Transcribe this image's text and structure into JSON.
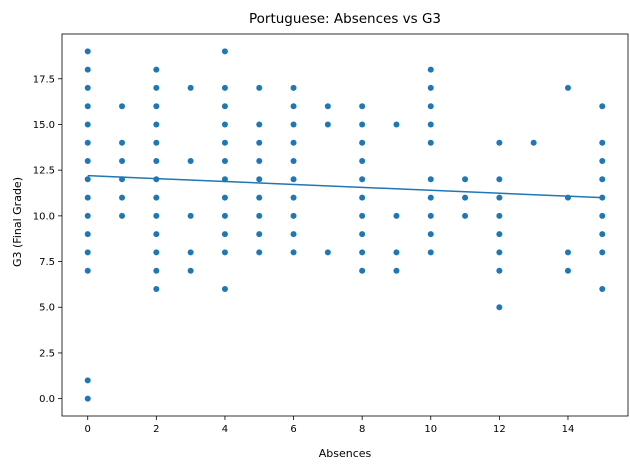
{
  "chart_data": {
    "type": "scatter",
    "title": "Portuguese: Absences vs G3",
    "xlabel": "Absences",
    "ylabel": "G3 (Final Grade)",
    "xlim": [
      -0.75,
      15.75
    ],
    "ylim": [
      -0.95,
      19.95
    ],
    "xticks": [
      0,
      2,
      4,
      6,
      8,
      10,
      12,
      14
    ],
    "xtick_labels": [
      "0",
      "2",
      "4",
      "6",
      "8",
      "10",
      "12",
      "14"
    ],
    "yticks": [
      0.0,
      2.5,
      5.0,
      7.5,
      10.0,
      12.5,
      15.0,
      17.5
    ],
    "ytick_labels": [
      "0.0",
      "2.5",
      "5.0",
      "7.5",
      "10.0",
      "12.5",
      "15.0",
      "17.5"
    ],
    "grid": false,
    "marker_color": "#1f77b4",
    "line_color": "#1f77b4",
    "points": [
      [
        0,
        19
      ],
      [
        0,
        18
      ],
      [
        0,
        17
      ],
      [
        0,
        16
      ],
      [
        0,
        15
      ],
      [
        0,
        14
      ],
      [
        0,
        13
      ],
      [
        0,
        12
      ],
      [
        0,
        11
      ],
      [
        0,
        10
      ],
      [
        0,
        9
      ],
      [
        0,
        8
      ],
      [
        0,
        7
      ],
      [
        0,
        1
      ],
      [
        0,
        0
      ],
      [
        1,
        16
      ],
      [
        1,
        14
      ],
      [
        1,
        13
      ],
      [
        1,
        12
      ],
      [
        1,
        11
      ],
      [
        1,
        10
      ],
      [
        2,
        18
      ],
      [
        2,
        17
      ],
      [
        2,
        16
      ],
      [
        2,
        15
      ],
      [
        2,
        14
      ],
      [
        2,
        13
      ],
      [
        2,
        12
      ],
      [
        2,
        11
      ],
      [
        2,
        10
      ],
      [
        2,
        9
      ],
      [
        2,
        8
      ],
      [
        2,
        7
      ],
      [
        2,
        6
      ],
      [
        3,
        17
      ],
      [
        3,
        13
      ],
      [
        3,
        10
      ],
      [
        3,
        8
      ],
      [
        3,
        7
      ],
      [
        4,
        19
      ],
      [
        4,
        17
      ],
      [
        4,
        16
      ],
      [
        4,
        15
      ],
      [
        4,
        14
      ],
      [
        4,
        13
      ],
      [
        4,
        12
      ],
      [
        4,
        11
      ],
      [
        4,
        10
      ],
      [
        4,
        9
      ],
      [
        4,
        8
      ],
      [
        4,
        6
      ],
      [
        5,
        17
      ],
      [
        5,
        15
      ],
      [
        5,
        14
      ],
      [
        5,
        13
      ],
      [
        5,
        12
      ],
      [
        5,
        11
      ],
      [
        5,
        10
      ],
      [
        5,
        9
      ],
      [
        5,
        8
      ],
      [
        6,
        17
      ],
      [
        6,
        16
      ],
      [
        6,
        15
      ],
      [
        6,
        14
      ],
      [
        6,
        13
      ],
      [
        6,
        12
      ],
      [
        6,
        11
      ],
      [
        6,
        10
      ],
      [
        6,
        9
      ],
      [
        6,
        8
      ],
      [
        7,
        16
      ],
      [
        7,
        15
      ],
      [
        7,
        8
      ],
      [
        8,
        16
      ],
      [
        8,
        15
      ],
      [
        8,
        14
      ],
      [
        8,
        13
      ],
      [
        8,
        12
      ],
      [
        8,
        11
      ],
      [
        8,
        10
      ],
      [
        8,
        9
      ],
      [
        8,
        8
      ],
      [
        8,
        7
      ],
      [
        9,
        15
      ],
      [
        9,
        10
      ],
      [
        9,
        8
      ],
      [
        9,
        7
      ],
      [
        10,
        18
      ],
      [
        10,
        17
      ],
      [
        10,
        16
      ],
      [
        10,
        15
      ],
      [
        10,
        14
      ],
      [
        10,
        12
      ],
      [
        10,
        11
      ],
      [
        10,
        10
      ],
      [
        10,
        9
      ],
      [
        10,
        8
      ],
      [
        11,
        12
      ],
      [
        11,
        11
      ],
      [
        11,
        10
      ],
      [
        12,
        14
      ],
      [
        12,
        12
      ],
      [
        12,
        11
      ],
      [
        12,
        10
      ],
      [
        12,
        9
      ],
      [
        12,
        8
      ],
      [
        12,
        7
      ],
      [
        12,
        5
      ],
      [
        13,
        14
      ],
      [
        14,
        17
      ],
      [
        14,
        11
      ],
      [
        14,
        8
      ],
      [
        14,
        7
      ],
      [
        15,
        16
      ],
      [
        15,
        14
      ],
      [
        15,
        13
      ],
      [
        15,
        12
      ],
      [
        15,
        11
      ],
      [
        15,
        10
      ],
      [
        15,
        9
      ],
      [
        15,
        8
      ],
      [
        15,
        6
      ]
    ],
    "trend_line": {
      "x": [
        0,
        15
      ],
      "y": [
        12.2,
        11.0
      ]
    }
  }
}
